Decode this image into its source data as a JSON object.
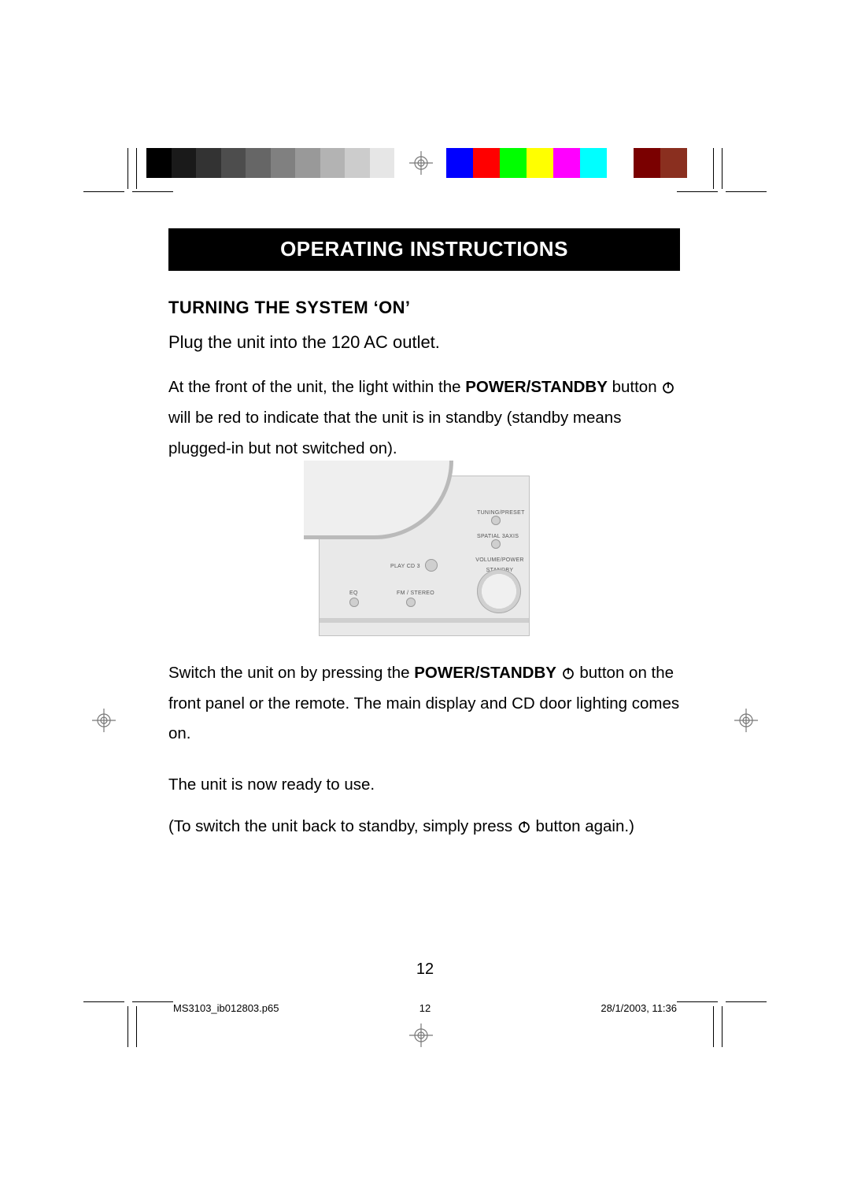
{
  "calibration": {
    "grays": [
      "#000000",
      "#1a1a1a",
      "#333333",
      "#4d4d4d",
      "#666666",
      "#808080",
      "#999999",
      "#b3b3b3",
      "#cccccc",
      "#e6e6e6",
      "#ffffff"
    ],
    "colors": [
      "#0000ff",
      "#ff0000",
      "#00ff00",
      "#ffff00",
      "#ff00ff",
      "#00ffff",
      "#ffffff",
      "#7a0000",
      "#8a2f1f"
    ]
  },
  "title": "OPERATING INSTRUCTIONS",
  "subhead": "TURNING THE SYSTEM ‘ON’",
  "paragraphs": {
    "lede": "Plug the unit into the 120 AC outlet.",
    "p1a": "At the front of the unit, the light within the ",
    "p1b_bold": "POWER/STANDBY",
    "p1c": " button ",
    "p1d": " will be red to indicate that the unit is in standby (standby means plugged-in but not switched on).",
    "p2a": "Switch the unit on by pressing the ",
    "p2b_bold": "POWER/STANDBY",
    "p2c": " ",
    "p2d": " button on the front panel or the remote. The main display and CD door lighting comes on.",
    "p3": "The unit is now ready to use.",
    "p4a": "(To switch the unit back to standby, simply press ",
    "p4b": " button again.)"
  },
  "product_labels": {
    "playcd": "PLAY CD 3",
    "eq": "EQ",
    "fm": "FM / STEREO",
    "surround": "SPATIAL 3AXIS",
    "volume": "VOLUME/POWER STANDBY",
    "tuning": "TUNING/PRESET"
  },
  "footer": {
    "file": "MS3103_ib012803.p65",
    "page": "12",
    "datetime": "28/1/2003, 11:36"
  },
  "page_number": "12"
}
